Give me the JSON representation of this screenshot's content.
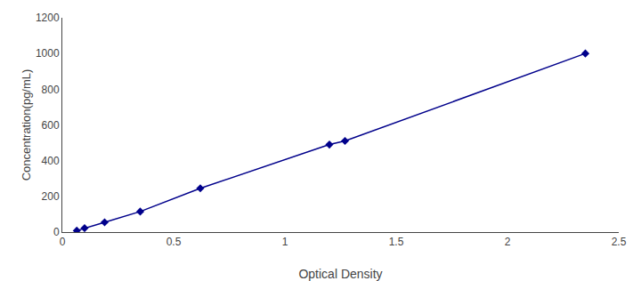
{
  "chart_data": {
    "type": "line",
    "x": [
      0.065,
      0.1,
      0.19,
      0.35,
      0.62,
      1.2,
      1.27,
      2.35
    ],
    "values": [
      8,
      22,
      55,
      115,
      245,
      490,
      510,
      1000
    ],
    "color": "#00008B",
    "marker": "diamond",
    "line_style": "solid",
    "xlabel": "Optical Density",
    "ylabel": "Concentration(pg/mL)",
    "xlim": [
      0,
      2.5
    ],
    "ylim": [
      0,
      1200
    ],
    "xticks": [
      0,
      0.5,
      1,
      1.5,
      2,
      2.5
    ],
    "yticks": [
      0,
      200,
      400,
      600,
      800,
      1000,
      1200
    ],
    "grid": false
  }
}
